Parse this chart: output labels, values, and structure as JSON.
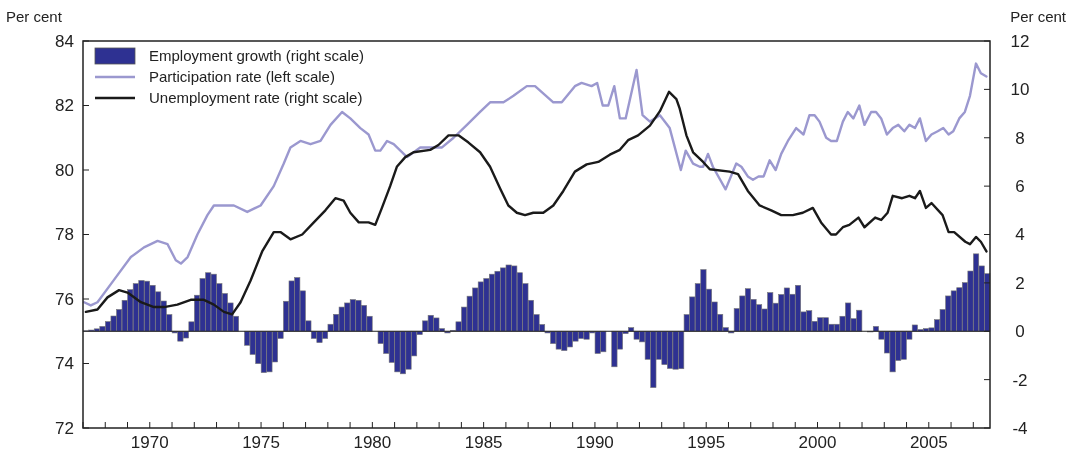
{
  "chart_data": {
    "type": "bar",
    "ylabel": "Per cent",
    "y2label": "Per cent",
    "legend": "top left",
    "xlim": [
      1967,
      2007.75
    ],
    "xticks": [
      {
        "value": 1967,
        "label": null
      },
      {
        "value": 1968,
        "label": null
      },
      {
        "value": 1969,
        "label": null
      },
      {
        "value": 1970,
        "label": "1970"
      },
      {
        "value": 1971,
        "label": null
      },
      {
        "value": 1972,
        "label": null
      },
      {
        "value": 1973,
        "label": null
      },
      {
        "value": 1974,
        "label": null
      },
      {
        "value": 1975,
        "label": "1975"
      },
      {
        "value": 1976,
        "label": null
      },
      {
        "value": 1977,
        "label": null
      },
      {
        "value": 1978,
        "label": null
      },
      {
        "value": 1979,
        "label": null
      },
      {
        "value": 1980,
        "label": "1980"
      },
      {
        "value": 1981,
        "label": null
      },
      {
        "value": 1982,
        "label": null
      },
      {
        "value": 1983,
        "label": null
      },
      {
        "value": 1984,
        "label": null
      },
      {
        "value": 1985,
        "label": "1985"
      },
      {
        "value": 1986,
        "label": null
      },
      {
        "value": 1987,
        "label": null
      },
      {
        "value": 1988,
        "label": null
      },
      {
        "value": 1989,
        "label": null
      },
      {
        "value": 1990,
        "label": "1990"
      },
      {
        "value": 1991,
        "label": null
      },
      {
        "value": 1992,
        "label": null
      },
      {
        "value": 1993,
        "label": null
      },
      {
        "value": 1994,
        "label": null
      },
      {
        "value": 1995,
        "label": "1995"
      },
      {
        "value": 1996,
        "label": null
      },
      {
        "value": 1997,
        "label": null
      },
      {
        "value": 1998,
        "label": null
      },
      {
        "value": 1999,
        "label": null
      },
      {
        "value": 2000,
        "label": "2000"
      },
      {
        "value": 2001,
        "label": null
      },
      {
        "value": 2002,
        "label": null
      },
      {
        "value": 2003,
        "label": null
      },
      {
        "value": 2004,
        "label": null
      },
      {
        "value": 2005,
        "label": "2005"
      },
      {
        "value": 2006,
        "label": null
      },
      {
        "value": 2007,
        "label": null
      }
    ],
    "ylim": [
      72,
      84
    ],
    "yticks": [
      72,
      74,
      76,
      78,
      80,
      82,
      84
    ],
    "y2lim": [
      -4,
      12
    ],
    "y2ticks": [
      -4,
      -2,
      0,
      2,
      4,
      6,
      8,
      10,
      12
    ],
    "x": [
      1967.125,
      1967.375,
      1967.625,
      1967.875,
      1968.125,
      1968.375,
      1968.625,
      1968.875,
      1969.125,
      1969.375,
      1969.625,
      1969.875,
      1970.125,
      1970.375,
      1970.625,
      1970.875,
      1971.125,
      1971.375,
      1971.625,
      1971.875,
      1972.125,
      1972.375,
      1972.625,
      1972.875,
      1973.125,
      1973.375,
      1973.625,
      1973.875,
      1974.125,
      1974.375,
      1974.625,
      1974.875,
      1975.125,
      1975.375,
      1975.625,
      1975.875,
      1976.125,
      1976.375,
      1976.625,
      1976.875,
      1977.125,
      1977.375,
      1977.625,
      1977.875,
      1978.125,
      1978.375,
      1978.625,
      1978.875,
      1979.125,
      1979.375,
      1979.625,
      1979.875,
      1980.125,
      1980.375,
      1980.625,
      1980.875,
      1981.125,
      1981.375,
      1981.625,
      1981.875,
      1982.125,
      1982.375,
      1982.625,
      1982.875,
      1983.125,
      1983.375,
      1983.625,
      1983.875,
      1984.125,
      1984.375,
      1984.625,
      1984.875,
      1985.125,
      1985.375,
      1985.625,
      1985.875,
      1986.125,
      1986.375,
      1986.625,
      1986.875,
      1987.125,
      1987.375,
      1987.625,
      1987.875,
      1988.125,
      1988.375,
      1988.625,
      1988.875,
      1989.125,
      1989.375,
      1989.625,
      1989.875,
      1990.125,
      1990.375,
      1990.625,
      1990.875,
      1991.125,
      1991.375,
      1991.625,
      1991.875,
      1992.125,
      1992.375,
      1992.625,
      1992.875,
      1993.125,
      1993.375,
      1993.625,
      1993.875,
      1994.125,
      1994.375,
      1994.625,
      1994.875,
      1995.125,
      1995.375,
      1995.625,
      1995.875,
      1996.125,
      1996.375,
      1996.625,
      1996.875,
      1997.125,
      1997.375,
      1997.625,
      1997.875,
      1998.125,
      1998.375,
      1998.625,
      1998.875,
      1999.125,
      1999.375,
      1999.625,
      1999.875,
      2000.125,
      2000.375,
      2000.625,
      2000.875,
      2001.125,
      2001.375,
      2001.625,
      2001.875,
      2002.125,
      2002.375,
      2002.625,
      2002.875,
      2003.125,
      2003.375,
      2003.625,
      2003.875,
      2004.125,
      2004.375,
      2004.625,
      2004.875,
      2005.125,
      2005.375,
      2005.625,
      2005.875,
      2006.125,
      2006.375,
      2006.625,
      2006.875,
      2007.125,
      2007.375,
      2007.625
    ],
    "series": [
      {
        "name": "Employment growth (right scale)",
        "axis": "y2",
        "color": "#2e3192",
        "values": [
          0.02,
          0.05,
          0.1,
          0.2,
          0.4,
          0.63,
          0.9,
          1.28,
          1.72,
          1.97,
          2.1,
          2.07,
          1.9,
          1.63,
          1.25,
          0.69,
          -0.07,
          -0.41,
          -0.28,
          0.39,
          1.49,
          2.18,
          2.42,
          2.36,
          1.97,
          1.56,
          1.17,
          0.62,
          0,
          -0.58,
          -0.96,
          -1.34,
          -1.71,
          -1.68,
          -1.27,
          -0.3,
          1.24,
          2.08,
          2.22,
          1.67,
          0.43,
          -0.3,
          -0.47,
          -0.3,
          0.29,
          0.7,
          1.0,
          1.17,
          1.31,
          1.28,
          1.07,
          0.62,
          0,
          -0.51,
          -0.92,
          -1.29,
          -1.68,
          -1.76,
          -1.57,
          -1.02,
          -0.14,
          0.43,
          0.66,
          0.55,
          0.11,
          -0.07,
          0.04,
          0.39,
          1.0,
          1.45,
          1.79,
          2.04,
          2.18,
          2.36,
          2.48,
          2.62,
          2.74,
          2.7,
          2.42,
          1.97,
          1.28,
          0.69,
          0.28,
          -0.07,
          -0.51,
          -0.74,
          -0.8,
          -0.65,
          -0.41,
          -0.3,
          -0.33,
          -0.07,
          -0.92,
          -0.85,
          0,
          -1.47,
          -0.74,
          -0.1,
          0.15,
          -0.33,
          -0.44,
          -1.16,
          -2.33,
          -1.16,
          -1.38,
          -1.54,
          -1.57,
          -1.55,
          0.69,
          1.42,
          1.97,
          2.55,
          1.74,
          1.21,
          0.7,
          0.15,
          -0.07,
          0.94,
          1.46,
          1.76,
          1.32,
          1.1,
          0.92,
          1.6,
          1.16,
          1.52,
          1.79,
          1.53,
          1.9,
          0.8,
          0.85,
          0.41,
          0.56,
          0.56,
          0.29,
          0.29,
          0.62,
          1.17,
          0.52,
          0.87,
          0,
          -0.03,
          0.2,
          -0.33,
          -0.9,
          -1.68,
          -1.21,
          -1.16,
          -0.33,
          0.26,
          0.07,
          0.11,
          0.14,
          0.48,
          0.9,
          1.46,
          1.67,
          1.8,
          2.01,
          2.49,
          3.2,
          2.7,
          2.38
        ]
      },
      {
        "name": "Participation rate (left scale)",
        "type": "line",
        "color": "#9b98cf",
        "x": [
          1967.05,
          1967.35,
          1967.65,
          1968.4,
          1969.15,
          1969.74,
          1970.35,
          1970.8,
          1971.17,
          1971.4,
          1971.7,
          1972.14,
          1972.59,
          1972.88,
          1973.78,
          1974.38,
          1974.98,
          1975.57,
          1976.02,
          1976.32,
          1976.77,
          1977.22,
          1977.67,
          1978.12,
          1978.64,
          1979.01,
          1979.46,
          1979.83,
          1980.13,
          1980.36,
          1980.66,
          1980.96,
          1981.56,
          1982.15,
          1982.75,
          1983.13,
          1983.65,
          1984.25,
          1984.84,
          1985.29,
          1985.89,
          1986.34,
          1986.94,
          1987.31,
          1988.13,
          1988.51,
          1989.1,
          1989.4,
          1989.85,
          1990.1,
          1990.35,
          1990.6,
          1990.87,
          1991.12,
          1991.38,
          1991.87,
          1992.14,
          1992.47,
          1992.92,
          1993.36,
          1993.86,
          1994.08,
          1994.41,
          1994.71,
          1994.86,
          1995.08,
          1995.3,
          1995.87,
          1996.35,
          1996.58,
          1996.87,
          1997.1,
          1997.35,
          1997.58,
          1997.85,
          1998.12,
          1998.37,
          1998.67,
          1999.04,
          1999.37,
          1999.64,
          1999.87,
          2000.09,
          2000.39,
          2000.61,
          2000.87,
          2001.14,
          2001.36,
          2001.61,
          2001.88,
          2002.11,
          2002.41,
          2002.63,
          2002.86,
          2003.12,
          2003.38,
          2003.63,
          2003.9,
          2004.13,
          2004.38,
          2004.6,
          2004.87,
          2005.12,
          2005.4,
          2005.65,
          2005.89,
          2006.1,
          2006.37,
          2006.62,
          2006.85,
          2007.12,
          2007.34,
          2007.59
        ],
        "values": [
          75.9,
          75.8,
          75.9,
          76.6,
          77.3,
          77.6,
          77.8,
          77.7,
          77.2,
          77.1,
          77.3,
          78.0,
          78.6,
          78.9,
          78.9,
          78.7,
          78.9,
          79.5,
          80.2,
          80.7,
          80.9,
          80.8,
          80.9,
          81.4,
          81.8,
          81.6,
          81.3,
          81.1,
          80.6,
          80.6,
          80.9,
          80.8,
          80.4,
          80.7,
          80.7,
          80.7,
          81.0,
          81.4,
          81.8,
          82.1,
          82.1,
          82.3,
          82.6,
          82.6,
          82.1,
          82.1,
          82.6,
          82.7,
          82.6,
          82.7,
          82.0,
          82.0,
          82.6,
          81.6,
          81.6,
          83.1,
          81.7,
          81.5,
          81.7,
          81.3,
          80.0,
          80.6,
          80.2,
          80.1,
          80.1,
          80.5,
          80.1,
          79.4,
          80.2,
          80.1,
          79.8,
          79.7,
          79.8,
          79.8,
          80.3,
          80.0,
          80.5,
          80.9,
          81.3,
          81.1,
          81.7,
          81.7,
          81.5,
          81.0,
          80.9,
          80.9,
          81.5,
          81.8,
          81.6,
          82.0,
          81.4,
          81.8,
          81.8,
          81.6,
          81.1,
          81.3,
          81.4,
          81.2,
          81.4,
          81.3,
          81.6,
          80.9,
          81.1,
          81.2,
          81.3,
          81.1,
          81.2,
          81.6,
          81.8,
          82.3,
          83.3,
          83.0,
          82.9
        ]
      },
      {
        "name": "Unemployment rate (right scale)",
        "type": "line",
        "axis": "y2",
        "color": "#1a1a1a",
        "x": [
          1967.13,
          1967.65,
          1968.1,
          1968.62,
          1969.0,
          1969.6,
          1970.19,
          1970.64,
          1971.24,
          1971.84,
          1972.43,
          1972.88,
          1973.33,
          1973.7,
          1974.08,
          1974.53,
          1975.05,
          1975.57,
          1975.87,
          1976.32,
          1976.85,
          1977.37,
          1977.89,
          1978.34,
          1978.71,
          1979.01,
          1979.39,
          1979.83,
          1980.13,
          1980.43,
          1980.8,
          1981.1,
          1981.48,
          1981.85,
          1982.6,
          1982.97,
          1983.42,
          1983.87,
          1984.32,
          1984.84,
          1985.29,
          1985.74,
          1986.11,
          1986.49,
          1986.86,
          1987.23,
          1987.68,
          1988.13,
          1988.58,
          1989.1,
          1989.63,
          1990.15,
          1990.67,
          1991.12,
          1991.49,
          1991.94,
          1992.47,
          1992.92,
          1993.33,
          1993.66,
          1993.81,
          1994.11,
          1994.41,
          1994.86,
          1995.16,
          1996.05,
          1996.43,
          1996.87,
          1997.4,
          1997.92,
          1998.37,
          1998.89,
          1999.34,
          1999.79,
          2000.16,
          2000.61,
          2000.83,
          2001.14,
          2001.43,
          2001.84,
          2002.11,
          2002.59,
          2002.86,
          2003.15,
          2003.38,
          2003.8,
          2004.13,
          2004.38,
          2004.6,
          2004.87,
          2005.12,
          2005.62,
          2005.89,
          2006.14,
          2006.64,
          2006.85,
          2007.12,
          2007.34,
          2007.59
        ],
        "values": [
          0.8,
          0.9,
          1.4,
          1.7,
          1.6,
          1.2,
          1.0,
          1.0,
          1.1,
          1.3,
          1.3,
          1.1,
          0.8,
          0.7,
          1.2,
          2.1,
          3.3,
          4.1,
          4.1,
          3.8,
          4.0,
          4.5,
          5.0,
          5.5,
          5.4,
          4.9,
          4.5,
          4.5,
          4.4,
          5.1,
          6.0,
          6.8,
          7.2,
          7.4,
          7.5,
          7.7,
          8.1,
          8.1,
          7.8,
          7.4,
          6.8,
          5.9,
          5.2,
          4.9,
          4.8,
          4.9,
          4.9,
          5.2,
          5.8,
          6.6,
          6.9,
          7.0,
          7.3,
          7.5,
          7.9,
          8.1,
          8.5,
          9.1,
          9.9,
          9.6,
          9.2,
          8.1,
          7.4,
          7.0,
          6.7,
          6.6,
          6.5,
          5.8,
          5.2,
          5.0,
          4.8,
          4.8,
          4.9,
          5.1,
          4.5,
          4.0,
          4.0,
          4.3,
          4.4,
          4.7,
          4.3,
          4.7,
          4.6,
          4.9,
          5.6,
          5.5,
          5.6,
          5.5,
          5.8,
          5.1,
          5.3,
          4.8,
          4.1,
          4.1,
          3.7,
          3.6,
          3.9,
          3.7,
          3.3
        ]
      }
    ]
  }
}
